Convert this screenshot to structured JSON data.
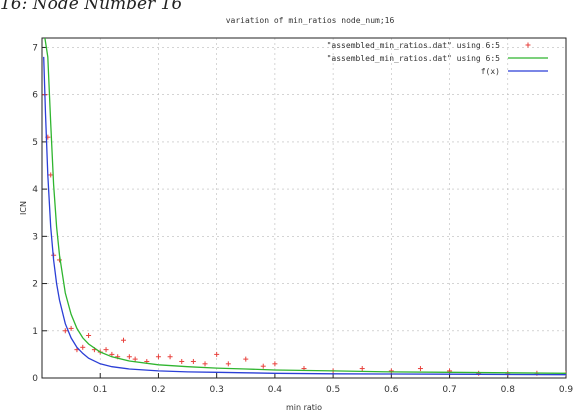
{
  "figure": {
    "caption": "16: Node Number 16"
  },
  "chart_data": {
    "type": "scatter",
    "title": "variation of min_ratios node_num;16",
    "xlabel": "min ratio",
    "ylabel": "ICN",
    "xlim": [
      0,
      0.9
    ],
    "ylim": [
      0,
      7.2
    ],
    "xticks": [
      "0.1",
      "0.2",
      "0.3",
      "0.4",
      "0.5",
      "0.6",
      "0.7",
      "0.8",
      "0.9"
    ],
    "yticks": [
      "0",
      "1",
      "2",
      "3",
      "4",
      "5",
      "6",
      "7"
    ],
    "grid": true,
    "legend_position": "top-right",
    "series": [
      {
        "name": "\"assembled_min_ratios.dat\" using 6:5",
        "kind": "points",
        "color": "#e8413c",
        "marker": "+",
        "x": [
          0.005,
          0.01,
          0.015,
          0.02,
          0.03,
          0.04,
          0.05,
          0.06,
          0.07,
          0.08,
          0.09,
          0.1,
          0.11,
          0.12,
          0.13,
          0.14,
          0.15,
          0.16,
          0.18,
          0.2,
          0.22,
          0.24,
          0.26,
          0.28,
          0.3,
          0.32,
          0.35,
          0.38,
          0.4,
          0.45,
          0.5,
          0.55,
          0.6,
          0.65,
          0.7,
          0.75,
          0.8,
          0.85,
          0.9
        ],
        "y": [
          6.0,
          5.1,
          4.3,
          2.6,
          2.5,
          1.0,
          1.05,
          0.6,
          0.65,
          0.9,
          0.6,
          0.55,
          0.6,
          0.5,
          0.45,
          0.8,
          0.45,
          0.4,
          0.35,
          0.45,
          0.45,
          0.35,
          0.35,
          0.3,
          0.5,
          0.3,
          0.4,
          0.25,
          0.3,
          0.2,
          0.15,
          0.2,
          0.15,
          0.2,
          0.15,
          0.1,
          0.1,
          0.1,
          0.1
        ]
      },
      {
        "name": "\"assembled_min_ratios.dat\" using 6:5",
        "kind": "line",
        "color": "#2fb52f",
        "x": [
          0.005,
          0.01,
          0.015,
          0.02,
          0.025,
          0.03,
          0.04,
          0.05,
          0.06,
          0.07,
          0.08,
          0.1,
          0.12,
          0.15,
          0.2,
          0.25,
          0.3,
          0.35,
          0.4,
          0.5,
          0.6,
          0.7,
          0.8,
          0.9
        ],
        "y": [
          7.2,
          6.8,
          5.4,
          4.1,
          3.2,
          2.6,
          1.8,
          1.35,
          1.05,
          0.85,
          0.72,
          0.55,
          0.45,
          0.36,
          0.28,
          0.24,
          0.21,
          0.19,
          0.17,
          0.15,
          0.13,
          0.12,
          0.11,
          0.1
        ]
      },
      {
        "name": "f(x)",
        "kind": "line",
        "color": "#2b3fd6",
        "x": [
          0.003,
          0.006,
          0.01,
          0.015,
          0.02,
          0.025,
          0.03,
          0.04,
          0.05,
          0.06,
          0.07,
          0.08,
          0.1,
          0.12,
          0.15,
          0.2,
          0.25,
          0.3,
          0.35,
          0.4,
          0.5,
          0.6,
          0.7,
          0.8,
          0.9
        ],
        "y": [
          6.8,
          5.6,
          4.3,
          3.2,
          2.5,
          2.0,
          1.65,
          1.15,
          0.85,
          0.65,
          0.52,
          0.42,
          0.3,
          0.24,
          0.19,
          0.15,
          0.13,
          0.12,
          0.11,
          0.1,
          0.09,
          0.085,
          0.08,
          0.075,
          0.07
        ]
      }
    ]
  }
}
